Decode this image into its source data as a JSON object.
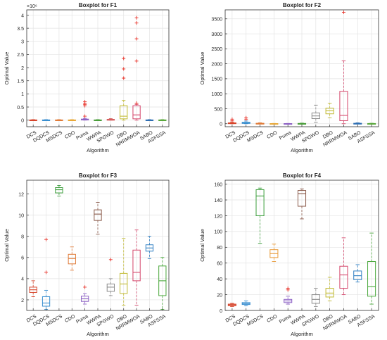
{
  "chart_data": [
    {
      "type": "box",
      "title": "Boxplot for F1",
      "xlabel": "Algorithm",
      "ylabel": "Optimal Value",
      "exponent_label": "×10⁶",
      "ylim": [
        -0.25,
        4.2
      ],
      "yticks": [
        0,
        0.5,
        1,
        1.5,
        2,
        2.5,
        3,
        3.5,
        4
      ],
      "ytick_labels": [
        "0",
        "0.5",
        "1",
        "1.5",
        "2",
        "2.5",
        "3",
        "3.5",
        "4"
      ],
      "grid": true,
      "categories": [
        "DCS",
        "DQDCS",
        "MSDCS",
        "CDO",
        "Puma",
        "WWPA",
        "SPGWO",
        "DBO",
        "NRRMWOA",
        "SABO",
        "ASFSSA"
      ],
      "colors": [
        "#d6452b",
        "#3a8fd0",
        "#e07b39",
        "#e8a838",
        "#8c60c4",
        "#4a9e3a",
        "#d45a5a",
        "#c2bb35",
        "#d4456a",
        "#2f6fb3",
        "#5aa83c"
      ],
      "boxes": [
        {
          "min": 0,
          "q1": 0,
          "median": 0,
          "q3": 0.01,
          "max": 0.02,
          "outliers": []
        },
        {
          "min": 0,
          "q1": 0,
          "median": 0,
          "q3": 0.01,
          "max": 0.02,
          "outliers": []
        },
        {
          "min": 0,
          "q1": 0,
          "median": 0,
          "q3": 0.01,
          "max": 0.02,
          "outliers": []
        },
        {
          "min": 0,
          "q1": 0,
          "median": 0,
          "q3": 0.01,
          "max": 0.02,
          "outliers": []
        },
        {
          "min": 0,
          "q1": 0.01,
          "median": 0.02,
          "q3": 0.04,
          "max": 0.07,
          "outliers": [
            0.55,
            0.6,
            0.65,
            0.7,
            0.15
          ]
        },
        {
          "min": 0,
          "q1": 0,
          "median": 0,
          "q3": 0.01,
          "max": 0.02,
          "outliers": []
        },
        {
          "min": 0,
          "q1": 0.01,
          "median": 0.02,
          "q3": 0.03,
          "max": 0.06,
          "outliers": []
        },
        {
          "min": 0,
          "q1": 0.05,
          "median": 0.15,
          "q3": 0.55,
          "max": 0.75,
          "outliers": [
            1.6,
            1.95,
            2.35
          ]
        },
        {
          "min": 0,
          "q1": 0.05,
          "median": 0.2,
          "q3": 0.55,
          "max": 0.6,
          "outliers": [
            0.65,
            2.25,
            3.1,
            3.7,
            3.9
          ]
        },
        {
          "min": 0,
          "q1": 0,
          "median": 0,
          "q3": 0.01,
          "max": 0.02,
          "outliers": []
        },
        {
          "min": 0,
          "q1": 0,
          "median": 0,
          "q3": 0.01,
          "max": 0.02,
          "outliers": []
        }
      ]
    },
    {
      "type": "box",
      "title": "Boxplot for F2",
      "xlabel": "Algorithm",
      "ylabel": "Optimal Value",
      "ylim": [
        -100,
        3800
      ],
      "yticks": [
        0,
        500,
        1000,
        1500,
        2000,
        2500,
        3000,
        3500
      ],
      "ytick_labels": [
        "0",
        "500",
        "1000",
        "1500",
        "2000",
        "2500",
        "3000",
        "3500"
      ],
      "grid": true,
      "categories": [
        "DCS",
        "DQDCS",
        "MSDCS",
        "CDO",
        "Puma",
        "WWPA",
        "SPGWO",
        "DBO",
        "NRRMWOA",
        "SABO",
        "ASFSSA"
      ],
      "colors": [
        "#d6452b",
        "#3a8fd0",
        "#e07b39",
        "#e8a838",
        "#8c60c4",
        "#4a9e3a",
        "#8c8c8c",
        "#c2bb35",
        "#d4456a",
        "#2f6fb3",
        "#5aa83c"
      ],
      "boxes": [
        {
          "min": 0,
          "q1": 5,
          "median": 15,
          "q3": 30,
          "max": 60,
          "outliers": [
            100,
            150
          ]
        },
        {
          "min": 0,
          "q1": 10,
          "median": 25,
          "q3": 50,
          "max": 90,
          "outliers": [
            150,
            200
          ]
        },
        {
          "min": 0,
          "q1": 2,
          "median": 5,
          "q3": 15,
          "max": 30,
          "outliers": []
        },
        {
          "min": 0,
          "q1": 1,
          "median": 2,
          "q3": 5,
          "max": 10,
          "outliers": []
        },
        {
          "min": 0,
          "q1": 1,
          "median": 2,
          "q3": 5,
          "max": 10,
          "outliers": []
        },
        {
          "min": 0,
          "q1": 2,
          "median": 5,
          "q3": 10,
          "max": 20,
          "outliers": []
        },
        {
          "min": 50,
          "q1": 170,
          "median": 260,
          "q3": 360,
          "max": 620,
          "outliers": []
        },
        {
          "min": 200,
          "q1": 330,
          "median": 430,
          "q3": 520,
          "max": 680,
          "outliers": []
        },
        {
          "min": 0,
          "q1": 100,
          "median": 280,
          "q3": 1080,
          "max": 2100,
          "outliers": [
            3720
          ]
        },
        {
          "min": 0,
          "q1": 2,
          "median": 5,
          "q3": 15,
          "max": 30,
          "outliers": []
        },
        {
          "min": 0,
          "q1": 1,
          "median": 3,
          "q3": 8,
          "max": 15,
          "outliers": []
        }
      ]
    },
    {
      "type": "box",
      "title": "Boxplot for F3",
      "xlabel": "Algorithm",
      "ylabel": "Optimal Value",
      "ylim": [
        1,
        13.3
      ],
      "yticks": [
        2,
        4,
        6,
        8,
        10,
        12
      ],
      "ytick_labels": [
        "2",
        "4",
        "6",
        "8",
        "10",
        "12"
      ],
      "grid": true,
      "categories": [
        "DCS",
        "DQDCS",
        "MSDCS",
        "CDO",
        "Puma",
        "WWPA",
        "SPGWO",
        "DBO",
        "NRRMWOA",
        "SABO",
        "ASFSSA"
      ],
      "colors": [
        "#d6452b",
        "#3a8fd0",
        "#3c9e3c",
        "#e07b39",
        "#8c60c4",
        "#8a5a4a",
        "#8c8c8c",
        "#c2bb35",
        "#d4456a",
        "#2f7fc3",
        "#4aa83c"
      ],
      "boxes": [
        {
          "min": 2.3,
          "q1": 2.7,
          "median": 2.95,
          "q3": 3.2,
          "max": 3.8,
          "outliers": []
        },
        {
          "min": 1.1,
          "q1": 1.4,
          "median": 1.7,
          "q3": 2.3,
          "max": 2.9,
          "outliers": [
            4.6,
            7.7
          ]
        },
        {
          "min": 11.8,
          "q1": 12.1,
          "median": 12.4,
          "q3": 12.6,
          "max": 12.8,
          "outliers": []
        },
        {
          "min": 4.8,
          "q1": 5.4,
          "median": 5.9,
          "q3": 6.3,
          "max": 7.0,
          "outliers": []
        },
        {
          "min": 1.6,
          "q1": 1.85,
          "median": 2.1,
          "q3": 2.35,
          "max": 2.6,
          "outliers": [
            3.2
          ]
        },
        {
          "min": 8.2,
          "q1": 9.5,
          "median": 10.1,
          "q3": 10.5,
          "max": 11.2,
          "outliers": []
        },
        {
          "min": 2.4,
          "q1": 2.8,
          "median": 3.2,
          "q3": 3.5,
          "max": 4.0,
          "outliers": [
            5.8
          ]
        },
        {
          "min": 1.5,
          "q1": 2.6,
          "median": 3.5,
          "q3": 4.5,
          "max": 7.8,
          "outliers": []
        },
        {
          "min": 1.5,
          "q1": 3.8,
          "median": 4.6,
          "q3": 6.7,
          "max": 8.6,
          "outliers": []
        },
        {
          "min": 5.9,
          "q1": 6.6,
          "median": 6.9,
          "q3": 7.2,
          "max": 8.0,
          "outliers": []
        },
        {
          "min": 1.1,
          "q1": 2.4,
          "median": 3.8,
          "q3": 5.2,
          "max": 6.0,
          "outliers": []
        }
      ]
    },
    {
      "type": "box",
      "title": "Boxplot for F4",
      "xlabel": "Algorithm",
      "ylabel": "Optimal Value",
      "ylim": [
        0,
        165
      ],
      "yticks": [
        0,
        20,
        40,
        60,
        80,
        100,
        120,
        140,
        160
      ],
      "ytick_labels": [
        "0",
        "20",
        "40",
        "60",
        "80",
        "100",
        "120",
        "140",
        "160"
      ],
      "grid": true,
      "categories": [
        "DCS",
        "DQDCS",
        "MSDCS",
        "CDO",
        "Puma",
        "WWPA",
        "SPGWO",
        "DBO",
        "NRRMWOA",
        "SABO",
        "ASFSSA"
      ],
      "colors": [
        "#d6452b",
        "#3a8fd0",
        "#3c9e3c",
        "#e89a38",
        "#8c60c4",
        "#8a5a4a",
        "#8c8c8c",
        "#c2bb35",
        "#d4456a",
        "#2f7fc3",
        "#4aa83c"
      ],
      "boxes": [
        {
          "min": 5,
          "q1": 6,
          "median": 7,
          "q3": 8,
          "max": 9,
          "outliers": []
        },
        {
          "min": 6,
          "q1": 7.5,
          "median": 8.5,
          "q3": 10,
          "max": 12,
          "outliers": []
        },
        {
          "min": 85,
          "q1": 120,
          "median": 145,
          "q3": 153,
          "max": 155,
          "outliers": []
        },
        {
          "min": 62,
          "q1": 67,
          "median": 72,
          "q3": 77,
          "max": 84,
          "outliers": []
        },
        {
          "min": 8,
          "q1": 10,
          "median": 12,
          "q3": 14,
          "max": 18,
          "outliers": [
            26,
            28
          ]
        },
        {
          "min": 116,
          "q1": 132,
          "median": 148,
          "q3": 152,
          "max": 154,
          "outliers": []
        },
        {
          "min": 5,
          "q1": 9,
          "median": 14,
          "q3": 20,
          "max": 28,
          "outliers": []
        },
        {
          "min": 12,
          "q1": 17,
          "median": 22,
          "q3": 28,
          "max": 42,
          "outliers": []
        },
        {
          "min": 20,
          "q1": 28,
          "median": 45,
          "q3": 56,
          "max": 92,
          "outliers": []
        },
        {
          "min": 36,
          "q1": 39,
          "median": 44,
          "q3": 50,
          "max": 58,
          "outliers": []
        },
        {
          "min": 8,
          "q1": 18,
          "median": 30,
          "q3": 62,
          "max": 98,
          "outliers": []
        }
      ]
    }
  ]
}
